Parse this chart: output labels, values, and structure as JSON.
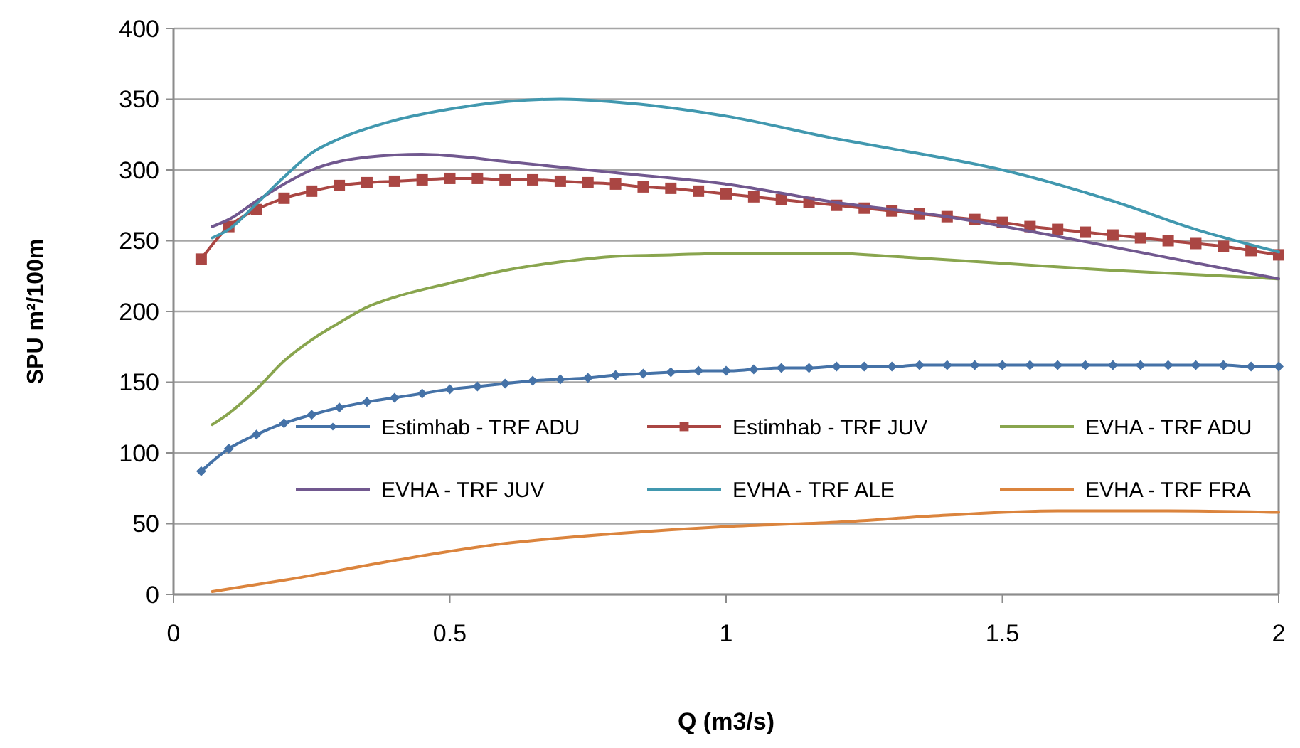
{
  "chart_data": {
    "type": "line",
    "xlabel": "Q (m3/s)",
    "ylabel": "SPU m²/100m",
    "xlim": [
      0,
      2
    ],
    "xticks": [
      0,
      0.5,
      1,
      1.5,
      2
    ],
    "ylim": [
      0,
      400
    ],
    "yticks": [
      0,
      50,
      100,
      150,
      200,
      250,
      300,
      350,
      400
    ],
    "grid": "y",
    "legend": "bottom",
    "line_style": "solid",
    "series": [
      {
        "name": "Estimhab - TRF ADU",
        "color": "#4572a7",
        "marker": "diamond",
        "x": [
          0.05,
          0.1,
          0.15,
          0.2,
          0.25,
          0.3,
          0.35,
          0.4,
          0.45,
          0.5,
          0.55,
          0.6,
          0.65,
          0.7,
          0.75,
          0.8,
          0.85,
          0.9,
          0.95,
          1.0,
          1.05,
          1.1,
          1.15,
          1.2,
          1.25,
          1.3,
          1.35,
          1.4,
          1.45,
          1.5,
          1.55,
          1.6,
          1.65,
          1.7,
          1.75,
          1.8,
          1.85,
          1.9,
          1.95,
          2.0
        ],
        "values": [
          87,
          103,
          113,
          121,
          127,
          132,
          136,
          139,
          142,
          145,
          147,
          149,
          151,
          152,
          153,
          155,
          156,
          157,
          158,
          158,
          159,
          160,
          160,
          161,
          161,
          161,
          162,
          162,
          162,
          162,
          162,
          162,
          162,
          162,
          162,
          162,
          162,
          162,
          161,
          161
        ]
      },
      {
        "name": "Estimhab - TRF JUV",
        "color": "#aa4643",
        "marker": "square",
        "x": [
          0.05,
          0.1,
          0.15,
          0.2,
          0.25,
          0.3,
          0.35,
          0.4,
          0.45,
          0.5,
          0.55,
          0.6,
          0.65,
          0.7,
          0.75,
          0.8,
          0.85,
          0.9,
          0.95,
          1.0,
          1.05,
          1.1,
          1.15,
          1.2,
          1.25,
          1.3,
          1.35,
          1.4,
          1.45,
          1.5,
          1.55,
          1.6,
          1.65,
          1.7,
          1.75,
          1.8,
          1.85,
          1.9,
          1.95,
          2.0
        ],
        "values": [
          237,
          260,
          272,
          280,
          285,
          289,
          291,
          292,
          293,
          294,
          294,
          293,
          293,
          292,
          291,
          290,
          288,
          287,
          285,
          283,
          281,
          279,
          277,
          275,
          273,
          271,
          269,
          267,
          265,
          263,
          260,
          258,
          256,
          254,
          252,
          250,
          248,
          246,
          243,
          240
        ]
      },
      {
        "name": "EVHA - TRF ADU",
        "color": "#89a54e",
        "marker": "none",
        "x": [
          0.07,
          0.1,
          0.15,
          0.2,
          0.25,
          0.3,
          0.35,
          0.4,
          0.5,
          0.6,
          0.7,
          0.8,
          0.9,
          1.0,
          1.2,
          1.3,
          1.5,
          1.7,
          1.85,
          2.0
        ],
        "values": [
          120,
          128,
          145,
          165,
          180,
          192,
          203,
          210,
          220,
          229,
          235,
          239,
          240,
          241,
          241,
          239,
          234,
          229,
          226,
          223
        ]
      },
      {
        "name": "EVHA - TRF JUV",
        "color": "#71588f",
        "marker": "none",
        "x": [
          0.07,
          0.1,
          0.15,
          0.2,
          0.25,
          0.3,
          0.35,
          0.45,
          0.5,
          0.6,
          0.8,
          1.0,
          1.2,
          1.4,
          1.6,
          1.8,
          2.0
        ],
        "values": [
          260,
          265,
          278,
          290,
          300,
          306,
          309,
          311,
          310,
          306,
          298,
          290,
          277,
          267,
          253,
          238,
          223
        ]
      },
      {
        "name": "EVHA - TRF ALE",
        "color": "#4198af",
        "marker": "none",
        "x": [
          0.07,
          0.1,
          0.15,
          0.2,
          0.25,
          0.3,
          0.4,
          0.5,
          0.55,
          0.7,
          0.8,
          1.0,
          1.2,
          1.3,
          1.5,
          1.7,
          1.85,
          2.0
        ],
        "values": [
          252,
          258,
          276,
          295,
          312,
          322,
          335,
          343,
          346,
          350,
          348,
          338,
          322,
          315,
          300,
          278,
          258,
          242
        ]
      },
      {
        "name": "EVHA - TRF FRA",
        "color": "#db843d",
        "marker": "none",
        "x": [
          0.07,
          0.2,
          0.4,
          0.6,
          0.8,
          1.0,
          1.2,
          1.4,
          1.6,
          1.8,
          2.0
        ],
        "values": [
          2,
          10,
          24,
          36,
          43,
          48,
          51,
          56,
          59,
          59,
          58
        ]
      }
    ]
  }
}
